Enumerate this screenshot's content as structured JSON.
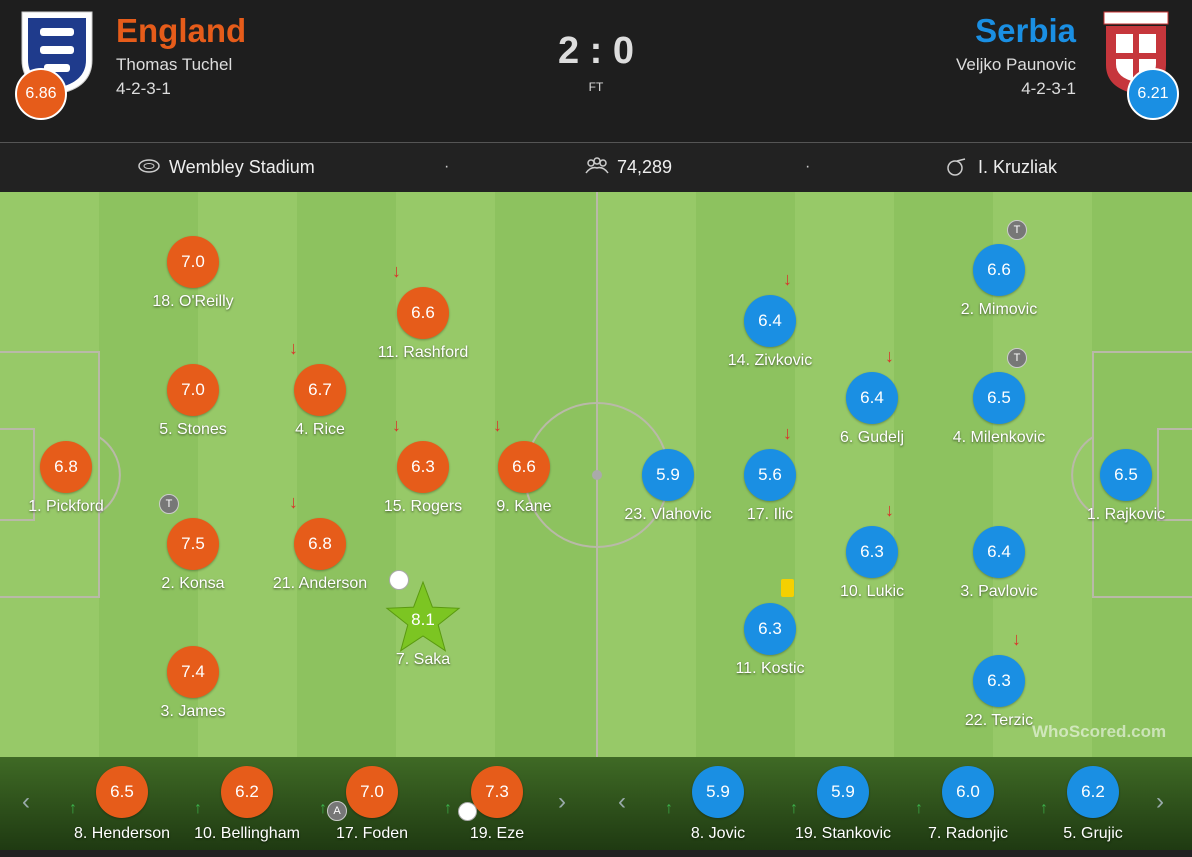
{
  "header": {
    "home": {
      "name": "England",
      "coach": "Thomas Tuchel",
      "formation": "4-2-3-1",
      "rating": "6.86"
    },
    "score": "2 : 0",
    "status": "FT",
    "away": {
      "name": "Serbia",
      "coach": "Veljko Paunovic",
      "formation": "4-2-3-1",
      "rating": "6.21"
    }
  },
  "info": {
    "stadium": "Wembley Stadium",
    "attendance": "74,289",
    "referee": "I. Kruzliak"
  },
  "pitch": {
    "home": [
      {
        "label": "18. O'Reilly",
        "rating": "7.0"
      },
      {
        "label": "11. Rashford",
        "rating": "6.6"
      },
      {
        "label": "5. Stones",
        "rating": "7.0"
      },
      {
        "label": "4. Rice",
        "rating": "6.7"
      },
      {
        "label": "1. Pickford",
        "rating": "6.8"
      },
      {
        "label": "15. Rogers",
        "rating": "6.3"
      },
      {
        "label": "9. Kane",
        "rating": "6.6"
      },
      {
        "label": "2. Konsa",
        "rating": "7.5",
        "badge": "T"
      },
      {
        "label": "21. Anderson",
        "rating": "6.8"
      },
      {
        "label": "7. Saka",
        "rating": "8.1"
      },
      {
        "label": "3. James",
        "rating": "7.4"
      }
    ],
    "away": [
      {
        "label": "2. Mimovic",
        "rating": "6.6",
        "badge": "T"
      },
      {
        "label": "14. Zivkovic",
        "rating": "6.4"
      },
      {
        "label": "6. Gudelj",
        "rating": "6.4"
      },
      {
        "label": "4. Milenkovic",
        "rating": "6.5",
        "badge": "T"
      },
      {
        "label": "23. Vlahovic",
        "rating": "5.9"
      },
      {
        "label": "17. Ilic",
        "rating": "5.6"
      },
      {
        "label": "1. Rajkovic",
        "rating": "6.5"
      },
      {
        "label": "10. Lukic",
        "rating": "6.3"
      },
      {
        "label": "3. Pavlovic",
        "rating": "6.4"
      },
      {
        "label": "11. Kostic",
        "rating": "6.3"
      },
      {
        "label": "22. Terzic",
        "rating": "6.3"
      }
    ]
  },
  "bench": {
    "home": [
      {
        "label": "8. Henderson",
        "rating": "6.5"
      },
      {
        "label": "10. Bellingham",
        "rating": "6.2"
      },
      {
        "label": "17. Foden",
        "rating": "7.0",
        "badge": "A"
      },
      {
        "label": "19. Eze",
        "rating": "7.3"
      }
    ],
    "away": [
      {
        "label": "8. Jovic",
        "rating": "5.9"
      },
      {
        "label": "19. Stankovic",
        "rating": "5.9"
      },
      {
        "label": "7. Radonjic",
        "rating": "6.0"
      },
      {
        "label": "5. Grujic",
        "rating": "6.2"
      }
    ]
  },
  "watermark": "WhoScored.com"
}
